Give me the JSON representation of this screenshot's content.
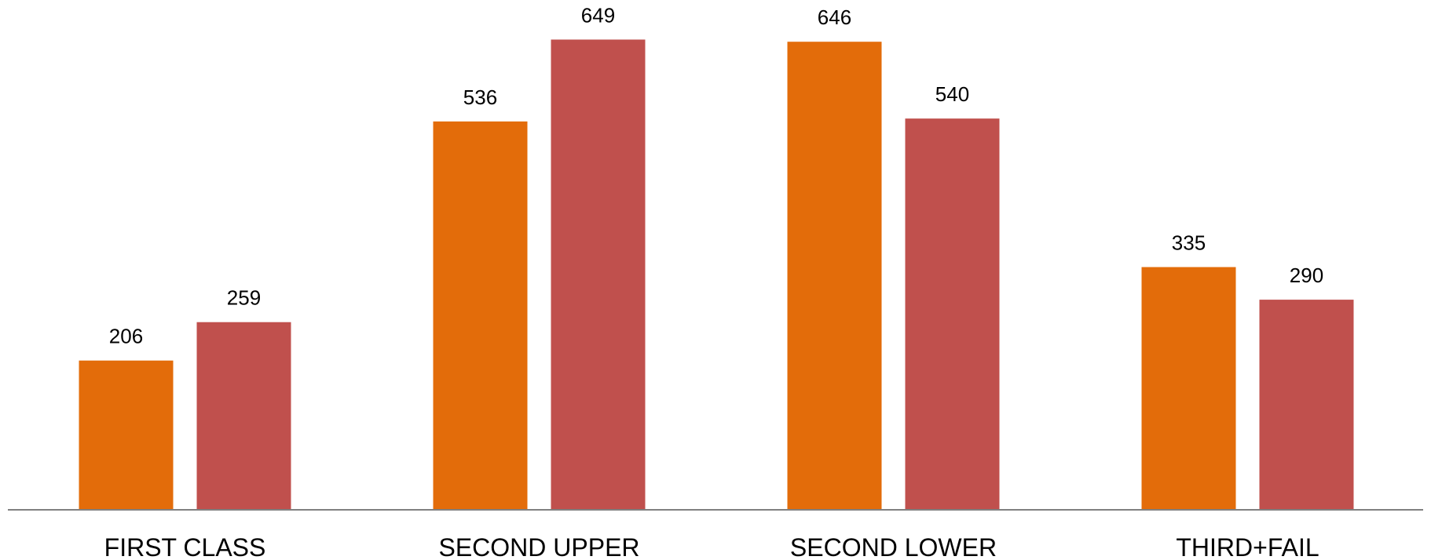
{
  "chart_data": {
    "type": "bar",
    "title": "",
    "xlabel": "",
    "ylabel": "",
    "categories": [
      "FIRST CLASS",
      "SECOND UPPER",
      "SECOND LOWER",
      "THIRD+FAIL"
    ],
    "series": [
      {
        "values": [
          206,
          536,
          646,
          335
        ],
        "color": "#E36C0A"
      },
      {
        "values": [
          259,
          649,
          540,
          290
        ],
        "color": "#C0504D"
      }
    ],
    "ylim": [
      0,
      700
    ],
    "grid": false,
    "legend": "none",
    "data_labels": true,
    "axis_color": "#808080"
  }
}
